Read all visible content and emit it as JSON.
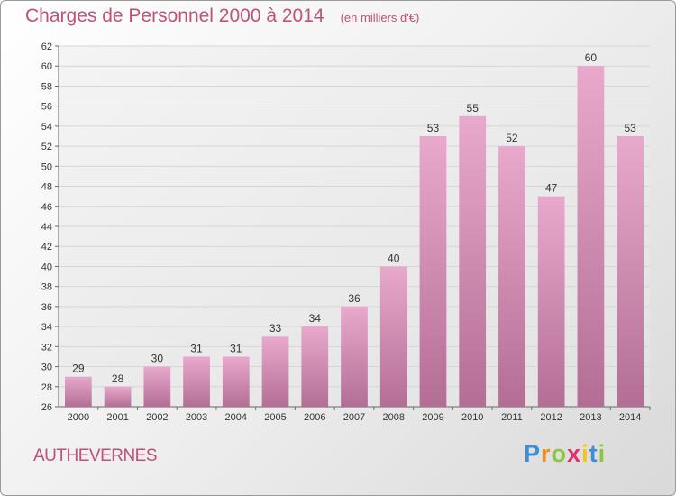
{
  "chart_data": {
    "type": "bar",
    "title": "Charges de Personnel 2000 à 2014",
    "subtitle": "(en milliers d'€)",
    "categories": [
      "2000",
      "2001",
      "2002",
      "2003",
      "2004",
      "2005",
      "2006",
      "2007",
      "2008",
      "2009",
      "2010",
      "2011",
      "2012",
      "2013",
      "2014"
    ],
    "values": [
      29,
      28,
      30,
      31,
      31,
      33,
      34,
      36,
      40,
      53,
      55,
      52,
      47,
      60,
      53
    ],
    "ylim": [
      26,
      62
    ],
    "yticks": [
      26,
      28,
      30,
      32,
      34,
      36,
      38,
      40,
      42,
      44,
      46,
      48,
      50,
      52,
      54,
      56,
      58,
      60,
      62
    ],
    "grid": true,
    "colors": {
      "bar_top": "#e8a9cc",
      "bar_bottom": "#b46e95",
      "text": "#c0507a"
    }
  },
  "footer": {
    "commune": "AUTHEVERNES",
    "logo": "Proxiti"
  }
}
